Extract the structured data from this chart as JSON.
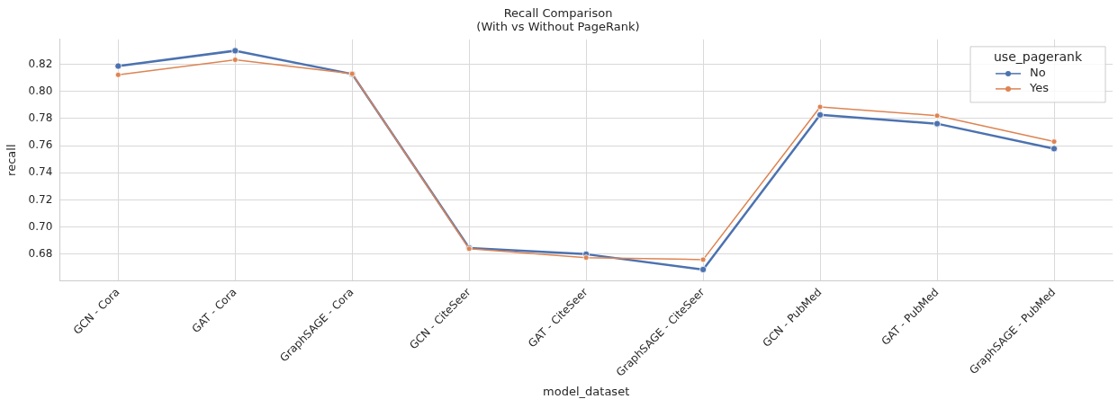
{
  "chart_data": {
    "type": "line",
    "title": "Recall Comparison\n(With vs Without PageRank)",
    "xlabel": "model_dataset",
    "ylabel": "recall",
    "legend_title": "use_pagerank",
    "categories": [
      "GCN - Cora",
      "GAT - Cora",
      "GraphSAGE - Cora",
      "GCN - CiteSeer",
      "GAT - CiteSeer",
      "GraphSAGE - CiteSeer",
      "GCN - PubMed",
      "GAT - PubMed",
      "GraphSAGE - PubMed"
    ],
    "series": [
      {
        "name": "No",
        "color": "#4c72b0",
        "values": [
          0.8187,
          0.83,
          0.8128,
          0.6846,
          0.68,
          0.6687,
          0.7827,
          0.7762,
          0.7578
        ]
      },
      {
        "name": "Yes",
        "color": "#dd8452",
        "values": [
          0.8122,
          0.8233,
          0.813,
          0.684,
          0.6775,
          0.676,
          0.7886,
          0.7821,
          0.763
        ]
      }
    ],
    "ylim": [
      0.6604,
      0.8383
    ],
    "yticks": [
      0.68,
      {
        "value": 0.7,
        "label": "0.70"
      },
      0.72,
      0.74,
      0.76,
      0.78,
      {
        "value": 0.8,
        "label": "0.80"
      },
      0.82
    ],
    "grid": true,
    "legend": "top right",
    "marker": "circle",
    "line_style": "solid"
  }
}
